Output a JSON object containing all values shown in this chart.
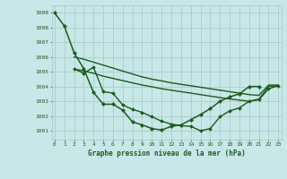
{
  "title": "Graphe pression niveau de la mer (hPa)",
  "bg_color": "#c8e8e8",
  "grid_color": "#a8cccc",
  "line_color": "#1a5c1a",
  "x_ticks": [
    0,
    1,
    2,
    3,
    4,
    5,
    6,
    7,
    8,
    9,
    10,
    11,
    12,
    13,
    14,
    15,
    16,
    17,
    18,
    19,
    20,
    21,
    22,
    23
  ],
  "y_ticks": [
    1001,
    1002,
    1003,
    1004,
    1005,
    1006,
    1007,
    1008,
    1009
  ],
  "xlim": [
    -0.3,
    23.3
  ],
  "ylim": [
    1000.4,
    1009.5
  ],
  "lines": [
    {
      "x": [
        0,
        1,
        2,
        3,
        4,
        5,
        6,
        7,
        8,
        9,
        10,
        11,
        12,
        13,
        14,
        15,
        16,
        17,
        18,
        19,
        20,
        21
      ],
      "y": [
        1009.0,
        1008.1,
        1006.3,
        1005.2,
        1003.6,
        1002.8,
        1002.8,
        1002.4,
        1001.6,
        1001.4,
        1001.15,
        1001.05,
        1001.3,
        1001.4,
        1001.75,
        1002.1,
        1002.5,
        1003.0,
        1003.3,
        1003.5,
        1004.0,
        1004.0
      ],
      "marker": "D",
      "markersize": 2.2,
      "linewidth": 1.1
    },
    {
      "x": [
        2,
        3,
        4,
        5,
        6,
        7,
        8,
        9,
        10,
        11,
        12,
        13,
        14,
        15,
        16,
        17,
        18,
        19,
        20,
        21,
        22,
        23
      ],
      "y": [
        1006.0,
        1005.85,
        1005.65,
        1005.45,
        1005.25,
        1005.05,
        1004.85,
        1004.65,
        1004.5,
        1004.38,
        1004.25,
        1004.15,
        1004.05,
        1003.95,
        1003.85,
        1003.75,
        1003.65,
        1003.55,
        1003.45,
        1003.4,
        1004.1,
        1004.1
      ],
      "marker": null,
      "markersize": 0,
      "linewidth": 1.0
    },
    {
      "x": [
        2,
        3,
        4,
        5,
        6,
        7,
        8,
        9,
        10,
        11,
        12,
        13,
        14,
        15,
        16,
        17,
        18,
        19,
        20,
        21,
        22,
        23
      ],
      "y": [
        1005.2,
        1005.05,
        1004.9,
        1004.7,
        1004.55,
        1004.4,
        1004.25,
        1004.1,
        1003.98,
        1003.85,
        1003.75,
        1003.65,
        1003.55,
        1003.45,
        1003.35,
        1003.25,
        1003.15,
        1003.08,
        1003.0,
        1003.15,
        1004.0,
        1004.05
      ],
      "marker": null,
      "markersize": 0,
      "linewidth": 1.0
    },
    {
      "x": [
        2,
        3,
        4,
        5,
        6,
        7,
        8,
        9,
        10,
        11,
        12,
        13,
        14,
        15,
        16,
        17,
        18,
        19,
        20,
        21,
        22,
        23
      ],
      "y": [
        1005.2,
        1004.9,
        1005.3,
        1003.65,
        1003.55,
        1002.75,
        1002.45,
        1002.25,
        1001.95,
        1001.65,
        1001.45,
        1001.35,
        1001.3,
        1001.0,
        1001.15,
        1001.95,
        1002.35,
        1002.55,
        1003.0,
        1003.1,
        1003.85,
        1004.05
      ],
      "marker": "D",
      "markersize": 2.0,
      "linewidth": 1.0
    }
  ]
}
